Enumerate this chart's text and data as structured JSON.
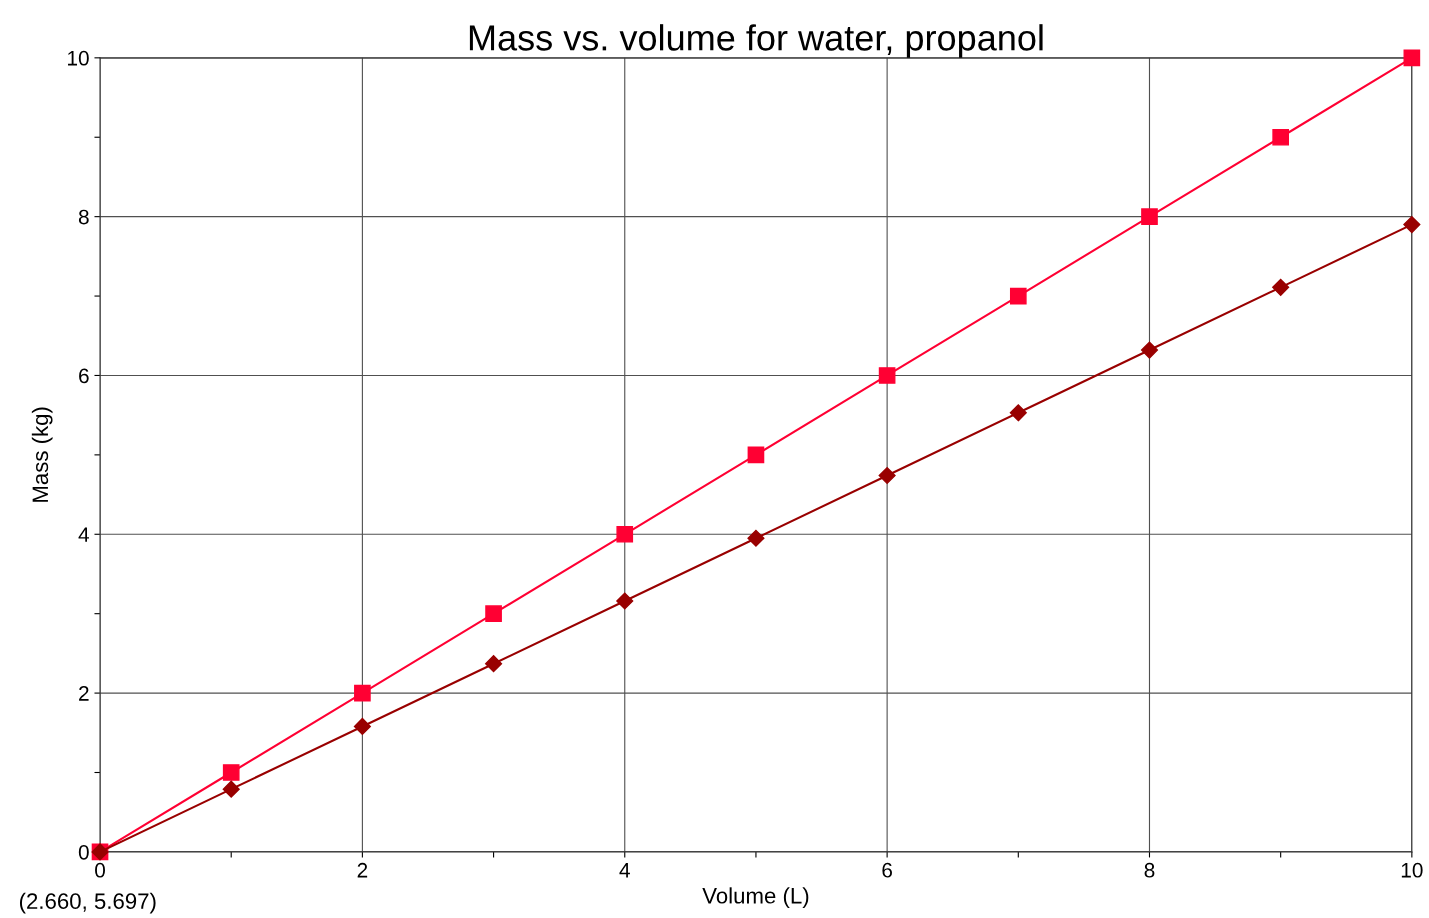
{
  "chart_data": {
    "type": "line",
    "title": "Mass vs. volume for water, propanol",
    "xlabel": "Volume (L)",
    "ylabel": "Mass (kg)",
    "x": [
      0,
      1,
      2,
      3,
      4,
      5,
      6,
      7,
      8,
      9,
      10
    ],
    "series": [
      {
        "color": "#ff0033",
        "marker": "square",
        "values": [
          0,
          1,
          2,
          3,
          4,
          5,
          6,
          7,
          8,
          9,
          10
        ]
      },
      {
        "color": "#990000",
        "marker": "diamond",
        "values": [
          0,
          0.79,
          1.58,
          2.37,
          3.16,
          3.95,
          4.74,
          5.53,
          6.32,
          7.11,
          7.9
        ]
      }
    ],
    "xlim": [
      0,
      10
    ],
    "ylim": [
      0,
      10
    ],
    "xticks": [
      0,
      {
        "value": 1,
        "label": null
      },
      2,
      {
        "value": 3,
        "label": null
      },
      4,
      {
        "value": 5,
        "label": null
      },
      6,
      {
        "value": 7,
        "label": null
      },
      8,
      {
        "value": 9,
        "label": null
      },
      10
    ],
    "yticks": [
      0,
      {
        "value": 1,
        "label": null
      },
      2,
      {
        "value": 3,
        "label": null
      },
      4,
      {
        "value": 5,
        "label": null
      },
      6,
      {
        "value": 7,
        "label": null
      },
      8,
      {
        "value": 9,
        "label": null
      },
      10
    ],
    "grid": true,
    "line_style": "solid",
    "annotations": [
      "(2.660, 5.697)"
    ]
  }
}
